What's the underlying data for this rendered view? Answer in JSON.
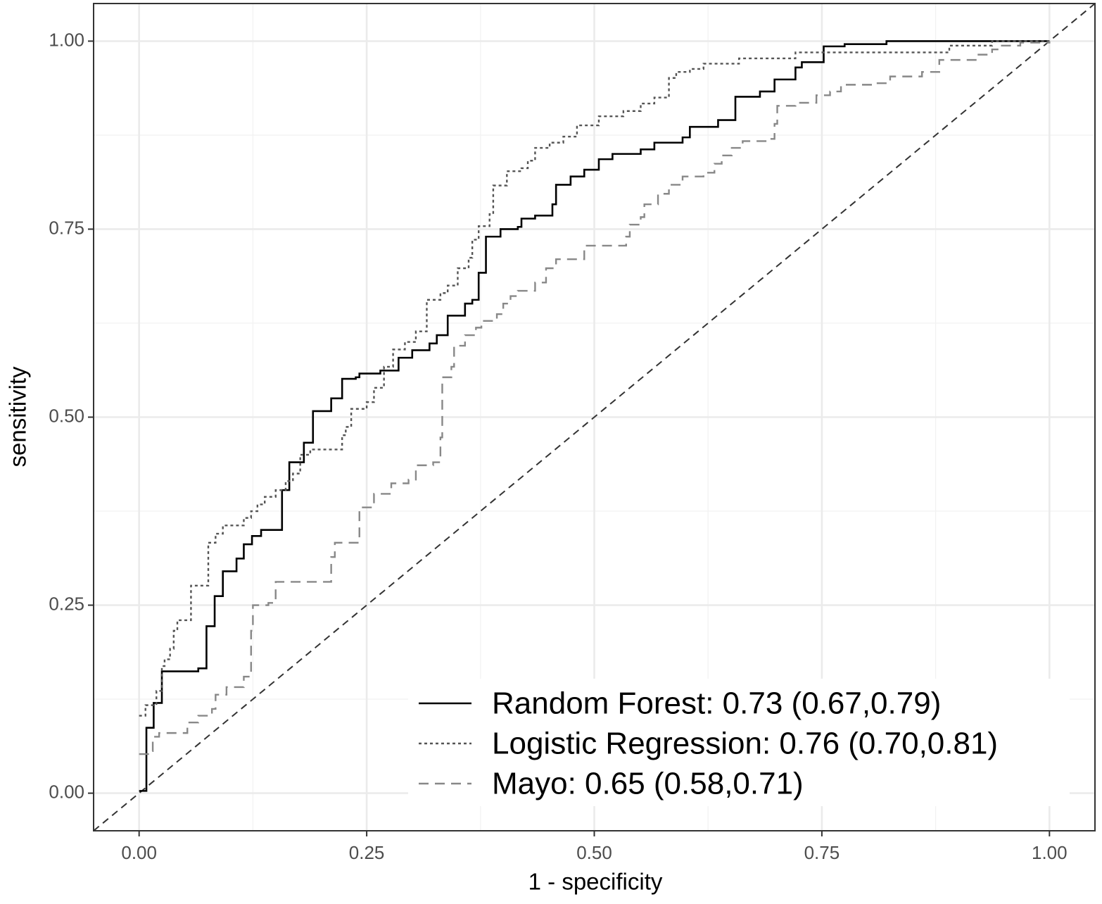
{
  "chart_data": {
    "type": "line",
    "xlabel": "1 - specificity",
    "ylabel": "sensitivity",
    "xlim": [
      -0.05,
      1.05
    ],
    "ylim": [
      -0.05,
      1.05
    ],
    "xticks": [
      {
        "value": 0,
        "label": "0.00"
      },
      {
        "value": 0.25,
        "label": "0.25"
      },
      {
        "value": 0.5,
        "label": "0.50"
      },
      {
        "value": 0.75,
        "label": "0.75"
      },
      {
        "value": 1,
        "label": "1.00"
      }
    ],
    "yticks": [
      {
        "value": 0,
        "label": "0.00"
      },
      {
        "value": 0.25,
        "label": "0.25"
      },
      {
        "value": 0.5,
        "label": "0.50"
      },
      {
        "value": 0.75,
        "label": "0.75"
      },
      {
        "value": 1,
        "label": "1.00"
      }
    ],
    "grid": true,
    "legend": "bottom-right",
    "step": true,
    "series": [
      {
        "name": "Random Forest: 0.73 (0.67,0.79)",
        "color": "#000000",
        "linetype": "solid",
        "x": [
          0,
          0.008,
          0.016,
          0.025,
          0.065,
          0.067,
          0.074,
          0.083,
          0.092,
          0.107,
          0.115,
          0.124,
          0.134,
          0.155,
          0.157,
          0.165,
          0.181,
          0.191,
          0.208,
          0.211,
          0.223,
          0.238,
          0.242,
          0.265,
          0.281,
          0.285,
          0.3,
          0.319,
          0.327,
          0.339,
          0.358,
          0.366,
          0.373,
          0.381,
          0.397,
          0.416,
          0.42,
          0.435,
          0.454,
          0.458,
          0.474,
          0.489,
          0.505,
          0.52,
          0.551,
          0.566,
          0.597,
          0.605,
          0.636,
          0.655,
          0.682,
          0.698,
          0.721,
          0.728,
          0.752,
          0.775,
          0.821,
          1
        ],
        "values": [
          0.003,
          0.087,
          0.12,
          0.162,
          0.166,
          0.166,
          0.222,
          0.262,
          0.295,
          0.312,
          0.331,
          0.342,
          0.35,
          0.35,
          0.403,
          0.44,
          0.466,
          0.508,
          0.508,
          0.525,
          0.551,
          0.553,
          0.558,
          0.562,
          0.562,
          0.579,
          0.589,
          0.598,
          0.609,
          0.635,
          0.651,
          0.656,
          0.692,
          0.74,
          0.75,
          0.753,
          0.764,
          0.768,
          0.783,
          0.809,
          0.82,
          0.829,
          0.843,
          0.85,
          0.856,
          0.865,
          0.872,
          0.886,
          0.895,
          0.926,
          0.933,
          0.949,
          0.965,
          0.972,
          0.993,
          0.996,
          1,
          1
        ]
      },
      {
        "name": "Logistic Regression: 0.76 (0.70,0.81)",
        "color": "#555555",
        "linetype": "dotted",
        "x": [
          0,
          0.007,
          0.019,
          0.025,
          0.028,
          0.034,
          0.038,
          0.042,
          0.048,
          0.057,
          0.059,
          0.076,
          0.084,
          0.092,
          0.115,
          0.123,
          0.13,
          0.138,
          0.15,
          0.161,
          0.169,
          0.177,
          0.188,
          0.2,
          0.223,
          0.227,
          0.233,
          0.25,
          0.258,
          0.269,
          0.279,
          0.292,
          0.304,
          0.316,
          0.331,
          0.339,
          0.35,
          0.362,
          0.366,
          0.373,
          0.385,
          0.389,
          0.404,
          0.42,
          0.427,
          0.435,
          0.451,
          0.466,
          0.481,
          0.505,
          0.532,
          0.551,
          0.566,
          0.582,
          0.59,
          0.605,
          0.62,
          0.659,
          0.721,
          0.89,
          0.937,
          0.952,
          1
        ],
        "values": [
          0.103,
          0.117,
          0.136,
          0.169,
          0.178,
          0.192,
          0.216,
          0.23,
          0.23,
          0.276,
          0.276,
          0.333,
          0.345,
          0.356,
          0.366,
          0.375,
          0.384,
          0.394,
          0.403,
          0.415,
          0.425,
          0.45,
          0.457,
          0.457,
          0.476,
          0.487,
          0.511,
          0.52,
          0.539,
          0.567,
          0.59,
          0.6,
          0.614,
          0.656,
          0.665,
          0.675,
          0.698,
          0.712,
          0.736,
          0.754,
          0.77,
          0.808,
          0.827,
          0.831,
          0.841,
          0.858,
          0.865,
          0.873,
          0.888,
          0.9,
          0.907,
          0.917,
          0.925,
          0.951,
          0.959,
          0.963,
          0.97,
          0.977,
          0.985,
          0.994,
          1,
          1,
          1
        ]
      },
      {
        "name": "Mayo: 0.65 (0.58,0.71)",
        "color": "#888888",
        "linetype": "dashed",
        "x": [
          0,
          0.011,
          0.015,
          0.022,
          0.049,
          0.053,
          0.065,
          0.08,
          0.084,
          0.096,
          0.115,
          0.123,
          0.125,
          0.142,
          0.15,
          0.208,
          0.211,
          0.215,
          0.24,
          0.242,
          0.258,
          0.277,
          0.296,
          0.304,
          0.323,
          0.331,
          0.333,
          0.343,
          0.346,
          0.358,
          0.37,
          0.376,
          0.393,
          0.4,
          0.408,
          0.416,
          0.435,
          0.447,
          0.458,
          0.489,
          0.52,
          0.535,
          0.539,
          0.551,
          0.555,
          0.57,
          0.582,
          0.597,
          0.62,
          0.632,
          0.64,
          0.651,
          0.663,
          0.69,
          0.698,
          0.701,
          0.721,
          0.744,
          0.759,
          0.771,
          0.806,
          0.825,
          0.86,
          0.879,
          0.921,
          0.937,
          0.944,
          0.968,
          1
        ],
        "values": [
          0.052,
          0.056,
          0.075,
          0.08,
          0.08,
          0.094,
          0.103,
          0.112,
          0.131,
          0.141,
          0.155,
          0.216,
          0.25,
          0.253,
          0.281,
          0.281,
          0.314,
          0.333,
          0.333,
          0.38,
          0.398,
          0.412,
          0.417,
          0.436,
          0.44,
          0.473,
          0.553,
          0.567,
          0.595,
          0.609,
          0.619,
          0.628,
          0.637,
          0.651,
          0.661,
          0.668,
          0.679,
          0.698,
          0.71,
          0.728,
          0.728,
          0.74,
          0.756,
          0.766,
          0.783,
          0.797,
          0.809,
          0.82,
          0.825,
          0.837,
          0.848,
          0.858,
          0.867,
          0.87,
          0.89,
          0.914,
          0.918,
          0.928,
          0.933,
          0.942,
          0.944,
          0.953,
          0.959,
          0.975,
          0.982,
          0.989,
          0.994,
          0.998,
          1
        ]
      }
    ]
  }
}
